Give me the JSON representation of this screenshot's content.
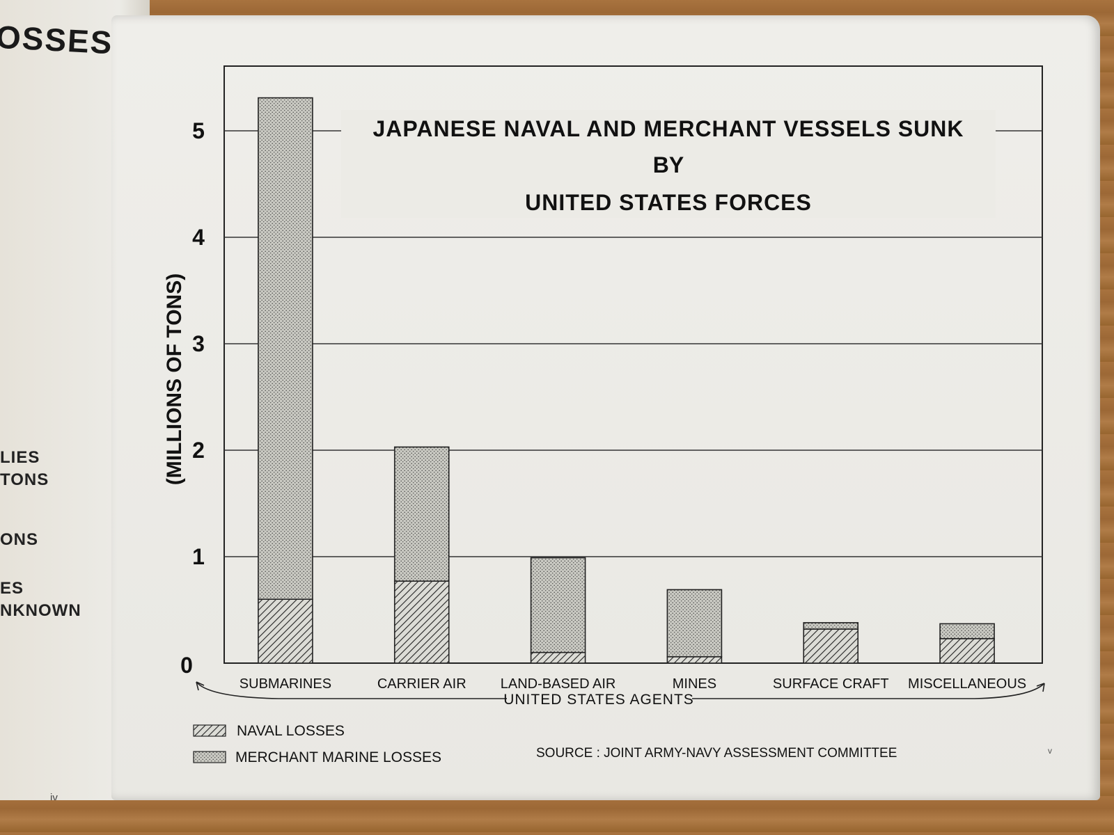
{
  "left_page": {
    "heading": "OSSES",
    "fragments": [
      "LIES",
      "TONS",
      "ONS",
      "ES",
      "NKNOWN"
    ],
    "page_number": "iv"
  },
  "right_page_number": "v",
  "source_note": "SOURCE : JOINT ARMY-NAVY ASSESSMENT COMMITTEE",
  "chart_data": {
    "type": "bar",
    "stacked": true,
    "title_lines": [
      "JAPANESE NAVAL AND MERCHANT VESSELS SUNK",
      "BY",
      "UNITED STATES FORCES"
    ],
    "ylabel": "(MILLIONS OF TONS)",
    "xlabel": "UNITED STATES AGENTS",
    "ylim": [
      0,
      5
    ],
    "yticks": [
      0,
      1,
      2,
      3,
      4,
      5
    ],
    "grid": true,
    "categories": [
      "SUBMARINES",
      "CARRIER AIR",
      "LAND-BASED AIR",
      "MINES",
      "SURFACE CRAFT",
      "MISCELLANEOUS"
    ],
    "series": [
      {
        "name": "NAVAL LOSSES",
        "pattern": "hatch",
        "values": [
          0.6,
          0.77,
          0.1,
          0.06,
          0.32,
          0.23
        ]
      },
      {
        "name": "MERCHANT MARINE LOSSES",
        "pattern": "stipple",
        "values": [
          4.71,
          1.26,
          0.89,
          0.63,
          0.06,
          0.14
        ]
      }
    ],
    "legend_position": "bottom-left"
  }
}
